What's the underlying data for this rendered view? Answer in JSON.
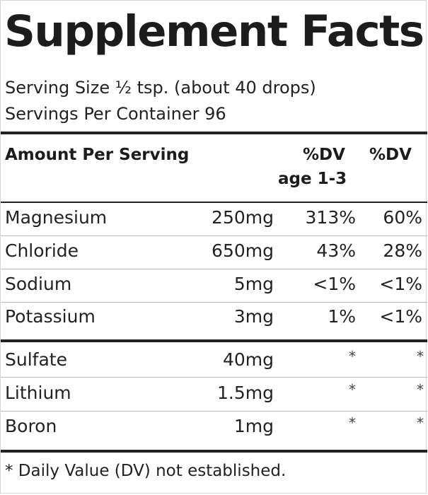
{
  "title": "Supplement Facts",
  "serving_size": "Serving Size ½ tsp. (about 40 drops)",
  "servings_per_container": "Servings Per Container 96",
  "header": {
    "amount_label": "Amount Per Serving",
    "dv_age_label_line1": "%DV",
    "dv_age_label_line2": "age 1-3",
    "dv_label": "%DV"
  },
  "nutrients": [
    {
      "name": "Magnesium",
      "amount": "250mg",
      "dv_age": "313%",
      "dv": "60%"
    },
    {
      "name": "Chloride",
      "amount": "650mg",
      "dv_age": "43%",
      "dv": "28%"
    },
    {
      "name": "Sodium",
      "amount": "5mg",
      "dv_age": "<1%",
      "dv": "<1%"
    },
    {
      "name": "Potassium",
      "amount": "3mg",
      "dv_age": "1%",
      "dv": "<1%"
    }
  ],
  "other_ingredients": [
    {
      "name": "Sulfate",
      "amount": "40mg",
      "dv_age": "*",
      "dv": "*"
    },
    {
      "name": "Lithium",
      "amount": "1.5mg",
      "dv_age": "*",
      "dv": "*"
    },
    {
      "name": "Boron",
      "amount": "1mg",
      "dv_age": "*",
      "dv": "*"
    }
  ],
  "footnote": "* Daily Value (DV) not established."
}
